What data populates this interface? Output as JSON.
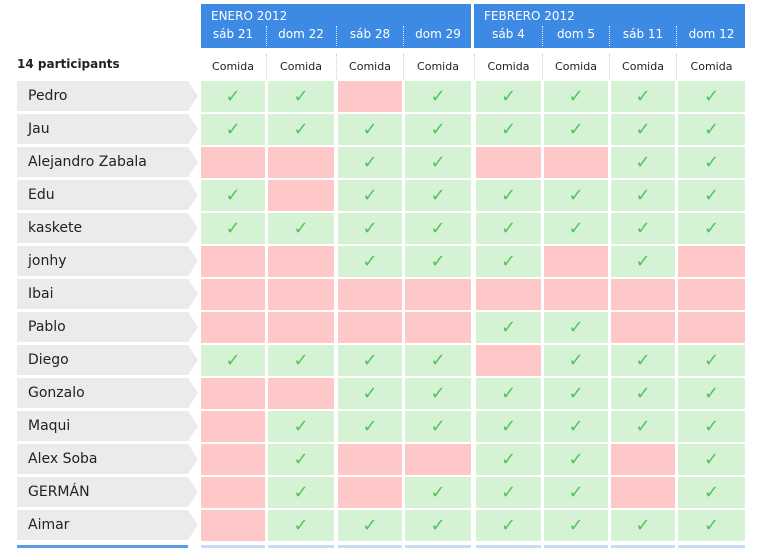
{
  "participants_count": "14 participants",
  "months": [
    {
      "label": "ENERO 2012"
    },
    {
      "label": "FEBRERO 2012"
    }
  ],
  "days": [
    {
      "label": "sáb 21",
      "meal": "Comida"
    },
    {
      "label": "dom 22",
      "meal": "Comida"
    },
    {
      "label": "sáb 28",
      "meal": "Comida"
    },
    {
      "label": "dom 29",
      "meal": "Comida"
    },
    {
      "label": "sáb 4",
      "meal": "Comida"
    },
    {
      "label": "dom 5",
      "meal": "Comida"
    },
    {
      "label": "sáb 11",
      "meal": "Comida"
    },
    {
      "label": "dom 12",
      "meal": "Comida"
    }
  ],
  "check_symbol": "✓",
  "colors": {
    "header": "#3d8ae5",
    "yes": "#d5f2d5",
    "no": "#ffc8c8",
    "check": "#51c45e"
  },
  "participants": [
    {
      "name": "Pedro",
      "votes": [
        1,
        1,
        0,
        1,
        1,
        1,
        1,
        1
      ]
    },
    {
      "name": "Jau",
      "votes": [
        1,
        1,
        1,
        1,
        1,
        1,
        1,
        1
      ]
    },
    {
      "name": "Alejandro Zabala",
      "votes": [
        0,
        0,
        1,
        1,
        0,
        0,
        1,
        1
      ]
    },
    {
      "name": "Edu",
      "votes": [
        1,
        0,
        1,
        1,
        1,
        1,
        1,
        1
      ]
    },
    {
      "name": "kaskete",
      "votes": [
        1,
        1,
        1,
        1,
        1,
        1,
        1,
        1
      ]
    },
    {
      "name": "jonhy",
      "votes": [
        0,
        0,
        1,
        1,
        1,
        0,
        1,
        0
      ]
    },
    {
      "name": "Ibai",
      "votes": [
        0,
        0,
        0,
        0,
        0,
        0,
        0,
        0
      ]
    },
    {
      "name": "Pablo",
      "votes": [
        0,
        0,
        0,
        0,
        1,
        1,
        0,
        0
      ]
    },
    {
      "name": "Diego",
      "votes": [
        1,
        1,
        1,
        1,
        0,
        1,
        1,
        1
      ]
    },
    {
      "name": "Gonzalo",
      "votes": [
        0,
        0,
        1,
        1,
        1,
        1,
        1,
        1
      ]
    },
    {
      "name": "Maqui",
      "votes": [
        0,
        1,
        1,
        1,
        1,
        1,
        1,
        1
      ]
    },
    {
      "name": "Alex Soba",
      "votes": [
        0,
        1,
        0,
        0,
        1,
        1,
        0,
        1
      ]
    },
    {
      "name": "GERMÁN",
      "votes": [
        0,
        1,
        0,
        1,
        1,
        1,
        0,
        1
      ]
    },
    {
      "name": "Aimar",
      "votes": [
        0,
        1,
        1,
        1,
        1,
        1,
        1,
        1
      ]
    }
  ]
}
